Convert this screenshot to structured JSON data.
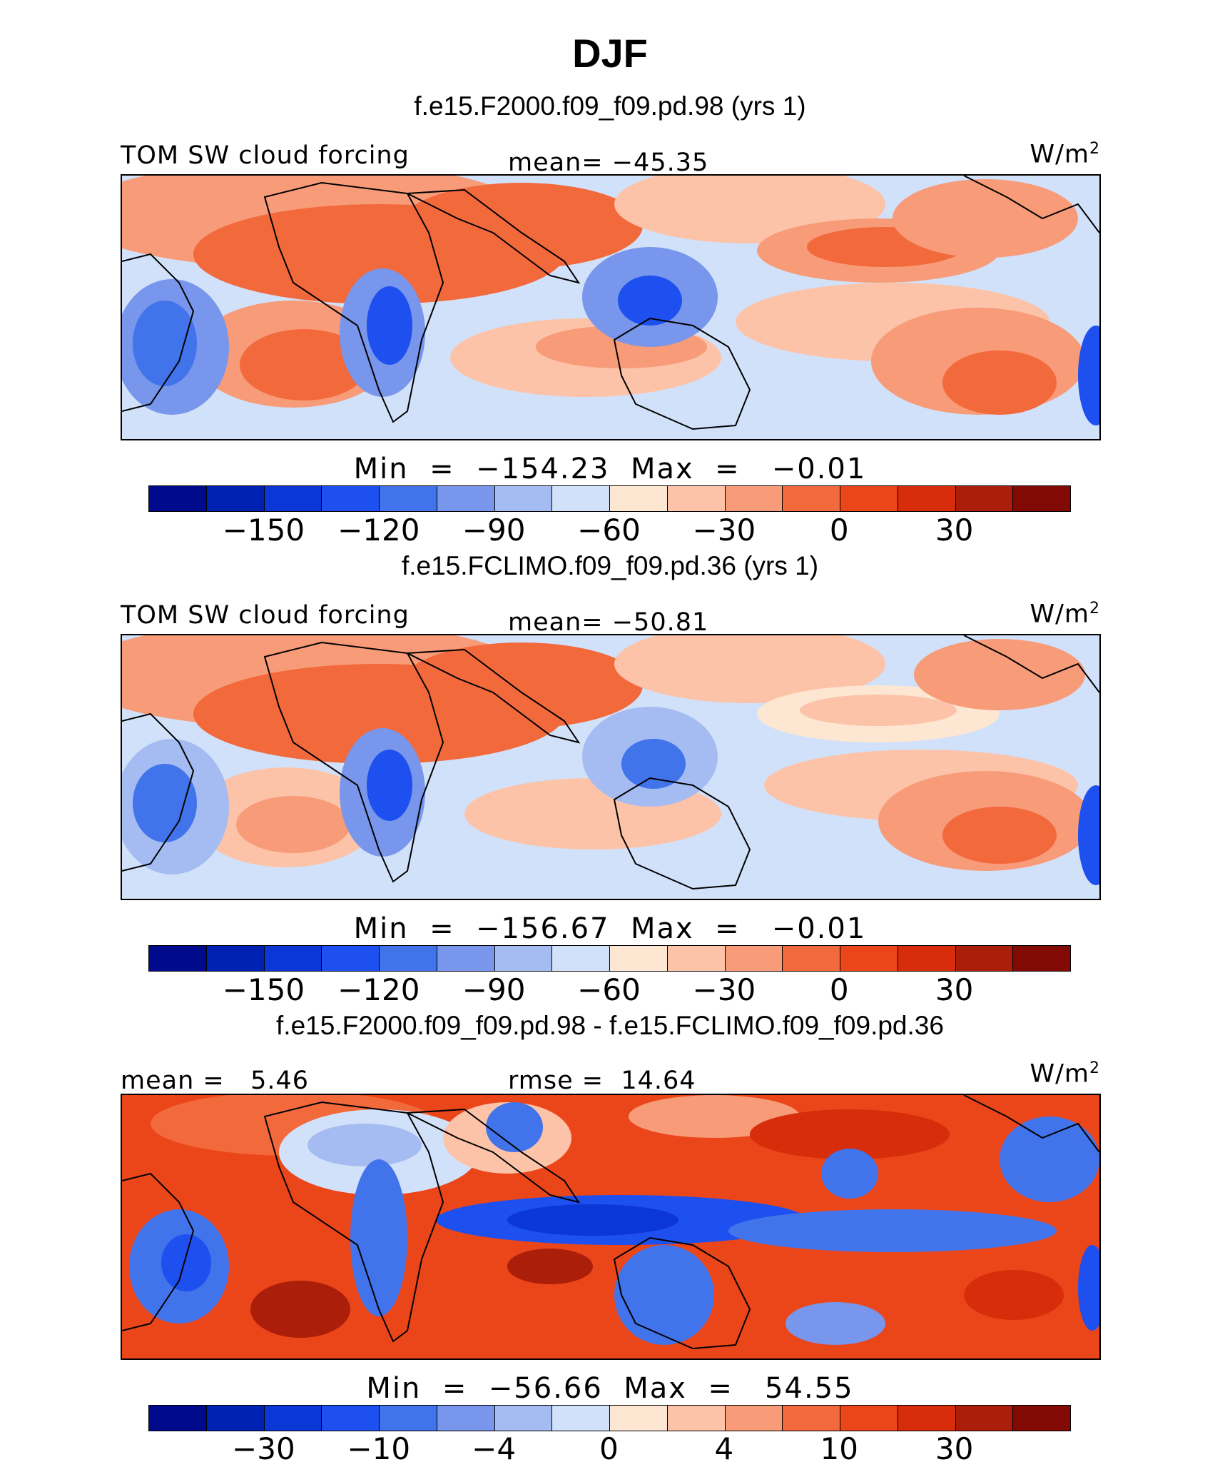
{
  "figure": {
    "title": "DJF"
  },
  "colors": [
    "#000a8c",
    "#0022b3",
    "#0a37d6",
    "#1e50f0",
    "#4173eb",
    "#7896eb",
    "#a5bcf2",
    "#d2e1fa",
    "#fde6d2",
    "#fcc3a8",
    "#f79b78",
    "#f2693c",
    "#eb4619",
    "#d72d0a",
    "#aa1e0a",
    "#820a05"
  ],
  "chart_data": [
    {
      "type": "heatmap",
      "run_title": "f.e15.F2000.f09_f09.pd.98 (yrs 1)",
      "variable": "TOM SW cloud forcing",
      "mean_label": "mean=",
      "mean_value": "−45.35",
      "units": "W/m",
      "units_exp": "2",
      "min_label": "Min",
      "min_value": "−154.23",
      "max_label": "Max",
      "max_value": "−0.01",
      "colorbar_levels": [
        "−150",
        "−120",
        "−90",
        "−60",
        "−30",
        "0",
        "30"
      ],
      "level_values": [
        -165,
        -150,
        -135,
        -120,
        -105,
        -90,
        -75,
        -60,
        -45,
        -30,
        -15,
        0,
        15,
        30,
        45
      ]
    },
    {
      "type": "heatmap",
      "run_title": "f.e15.FCLIMO.f09_f09.pd.36 (yrs 1)",
      "variable": "TOM SW cloud forcing",
      "mean_label": "mean=",
      "mean_value": "−50.81",
      "units": "W/m",
      "units_exp": "2",
      "min_label": "Min",
      "min_value": "−156.67",
      "max_label": "Max",
      "max_value": "−0.01",
      "colorbar_levels": [
        "−150",
        "−120",
        "−90",
        "−60",
        "−30",
        "0",
        "30"
      ],
      "level_values": [
        -165,
        -150,
        -135,
        -120,
        -105,
        -90,
        -75,
        -60,
        -45,
        -30,
        -15,
        0,
        15,
        30,
        45
      ]
    },
    {
      "type": "heatmap",
      "run_title": "f.e15.F2000.f09_f09.pd.98 - f.e15.FCLIMO.f09_f09.pd.36",
      "mean_label": "mean =",
      "mean_value": "5.46",
      "rmse_label": "rmse =",
      "rmse_value": "14.64",
      "units": "W/m",
      "units_exp": "2",
      "min_label": "Min",
      "min_value": "−56.66",
      "max_label": "Max",
      "max_value": "54.55",
      "colorbar_levels": [
        "−30",
        "−10",
        "−4",
        "0",
        "4",
        "10",
        "30"
      ]
    }
  ]
}
